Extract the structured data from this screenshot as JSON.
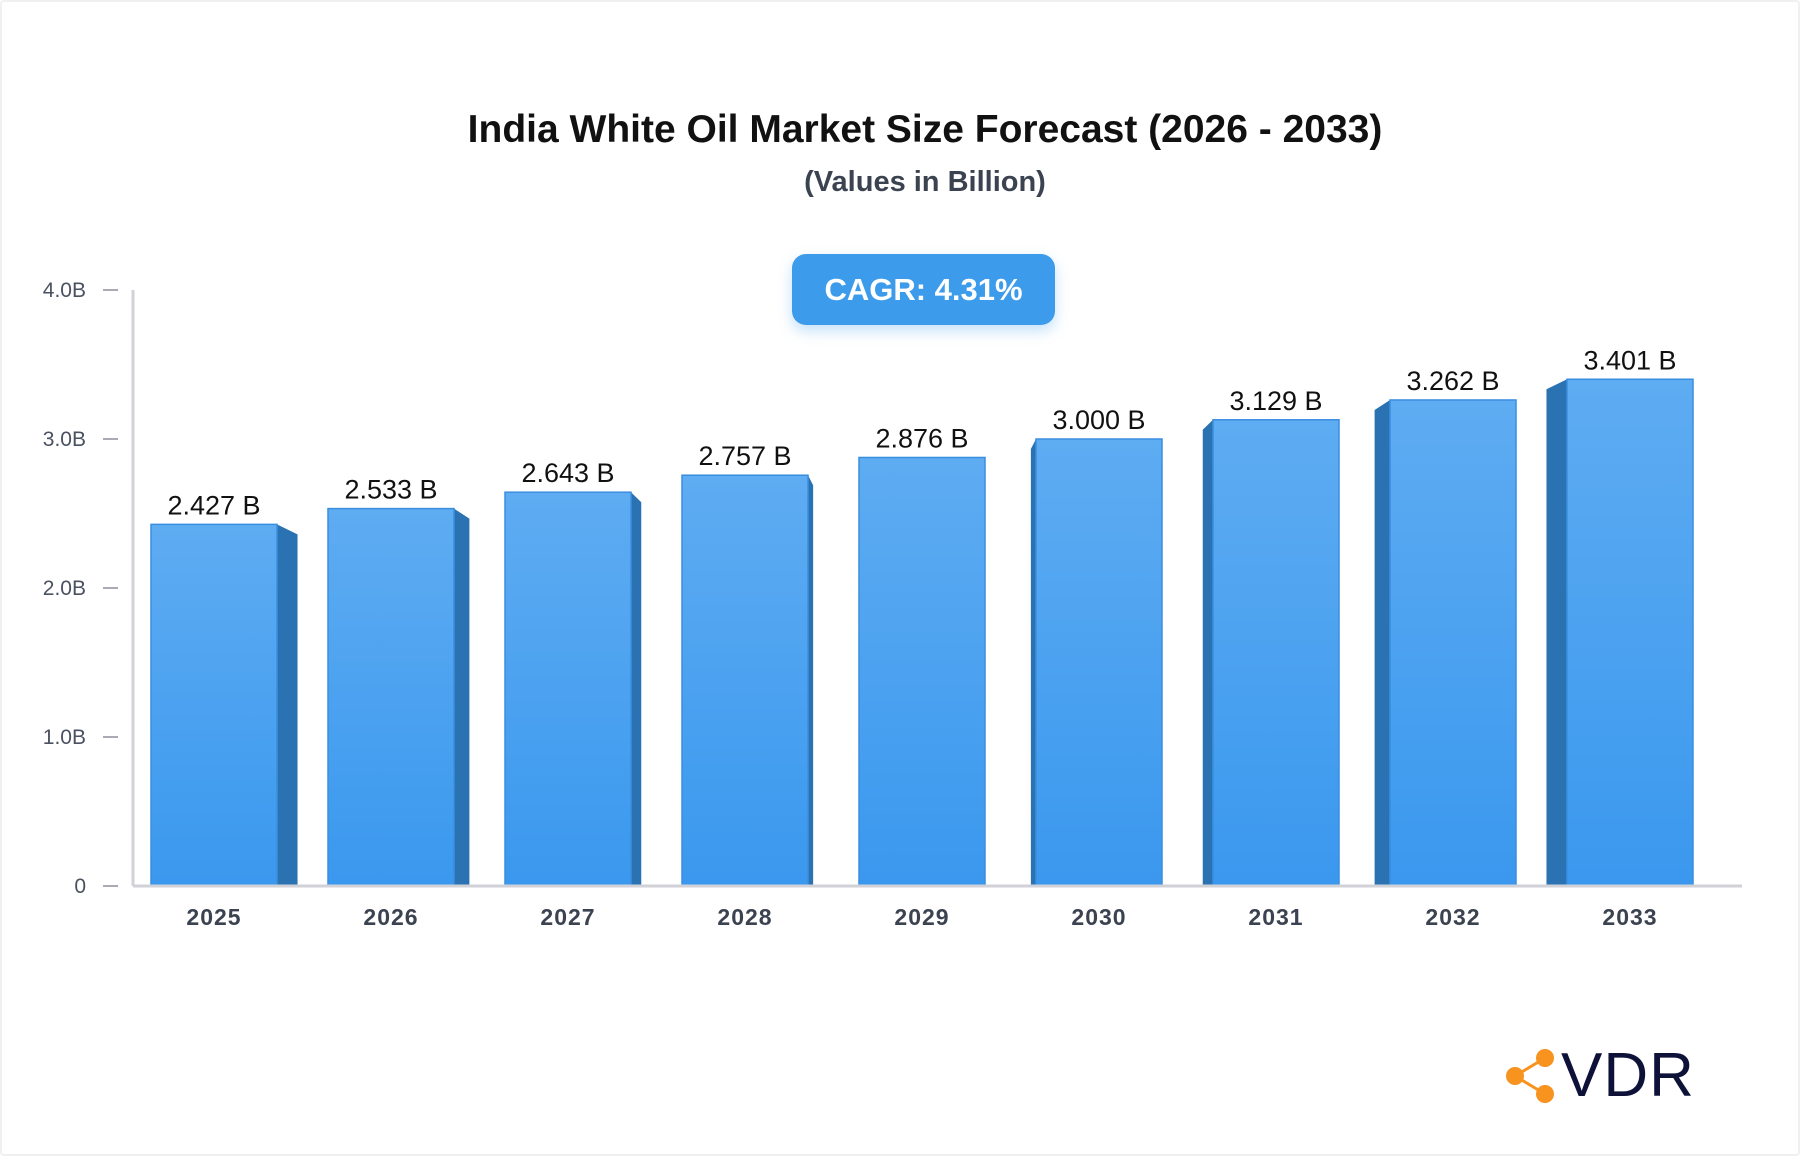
{
  "chart_data": {
    "type": "bar",
    "title": "India White Oil Market Size Forecast (2026 - 2033)",
    "subtitle": "(Values in Billion)",
    "categories": [
      "2025",
      "2026",
      "2027",
      "2028",
      "2029",
      "2030",
      "2031",
      "2032",
      "2033"
    ],
    "values": [
      2.427,
      2.533,
      2.643,
      2.757,
      2.876,
      3.0,
      3.129,
      3.262,
      3.401
    ],
    "data_labels": [
      "2.427 B",
      "2.533 B",
      "2.643 B",
      "2.757 B",
      "2.876 B",
      "3.000 B",
      "3.129 B",
      "3.262 B",
      "3.401 B"
    ],
    "ylim": [
      0,
      4
    ],
    "yticks": [
      0,
      1,
      2,
      3,
      4
    ],
    "ytick_labels": [
      "0",
      "1.0B",
      "2.0B",
      "3.0B",
      "4.0B"
    ],
    "grid": false,
    "annotation": "CAGR: 4.31%",
    "colors": {
      "bar_top": "#5eacf2",
      "bar_bottom": "#3a98ee",
      "bar_side": "#2b72b3",
      "accent": "#3d9bec"
    }
  },
  "logo": {
    "text": "VDR",
    "icon": "share-nodes-icon",
    "color": "#f7931e"
  }
}
